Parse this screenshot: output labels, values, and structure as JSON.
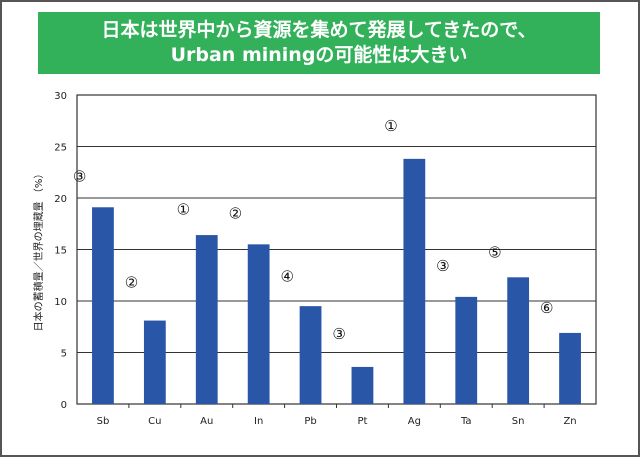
{
  "title": {
    "line1": "日本は世界中から資源を集めて発展してきたので、",
    "line2": "Urban miningの可能性は大きい"
  },
  "chart_data": {
    "type": "bar",
    "categories": [
      "Sb",
      "Cu",
      "Au",
      "In",
      "Pb",
      "Pt",
      "Ag",
      "Ta",
      "Sn",
      "Zn"
    ],
    "values": [
      19.1,
      8.1,
      16.4,
      15.5,
      9.5,
      3.6,
      23.8,
      10.4,
      12.3,
      6.9
    ],
    "annotations": [
      "③",
      "②",
      "①",
      "②",
      "④",
      "③",
      "①",
      "③",
      "⑤",
      "⑥"
    ],
    "ylabel": "日本の蓄積量／世界の埋蔵量 （%）",
    "xlabel": "",
    "ylim": [
      0,
      30
    ],
    "yticks": [
      0,
      5,
      10,
      15,
      20,
      25,
      30
    ],
    "grid": true,
    "bar_color": "#2a56a8",
    "title_bg_color": "#33b05a"
  }
}
